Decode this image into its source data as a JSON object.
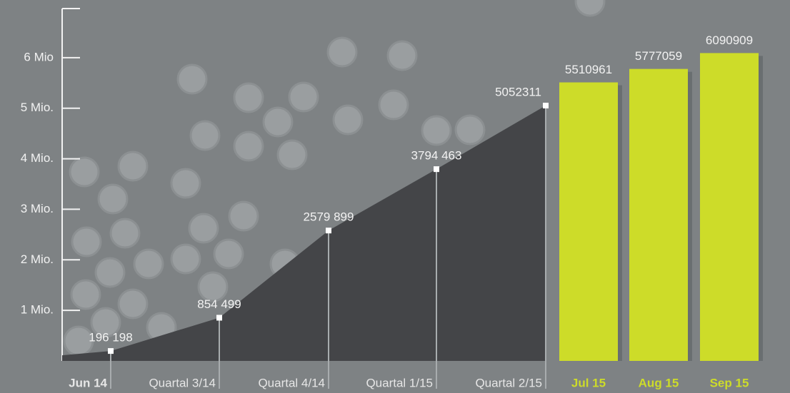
{
  "chart_data": {
    "type": "combo",
    "categories": [
      "Jun 14",
      "Quartal 3/14",
      "Quartal 4/14",
      "Quartal 1/15",
      "Quartal 2/15",
      "Jul 15",
      "Aug 15",
      "Sep 15"
    ],
    "series": [
      {
        "type": "area",
        "color": "#444548",
        "values": [
          196198,
          854499,
          2579899,
          3794463,
          5052311,
          null,
          null,
          null
        ],
        "value_labels": [
          "196 198",
          "854 499",
          "2579 899",
          "3794 463",
          "5052311",
          null,
          null,
          null
        ]
      },
      {
        "type": "bar",
        "color": "#cddc29",
        "values": [
          null,
          null,
          null,
          null,
          null,
          5510961,
          5777059,
          6090909
        ],
        "value_labels": [
          null,
          null,
          null,
          null,
          null,
          "5510961",
          "5777059",
          "6090909"
        ]
      }
    ],
    "ylim": [
      0,
      7000000
    ],
    "yticks": [
      {
        "value": 1000000,
        "label": "1 Mio."
      },
      {
        "value": 2000000,
        "label": "2 Mio."
      },
      {
        "value": 3000000,
        "label": "3 Mio."
      },
      {
        "value": 4000000,
        "label": "4 Mio."
      },
      {
        "value": 5000000,
        "label": "5 Mio."
      },
      {
        "value": 6000000,
        "label": "6 Mio"
      }
    ]
  }
}
